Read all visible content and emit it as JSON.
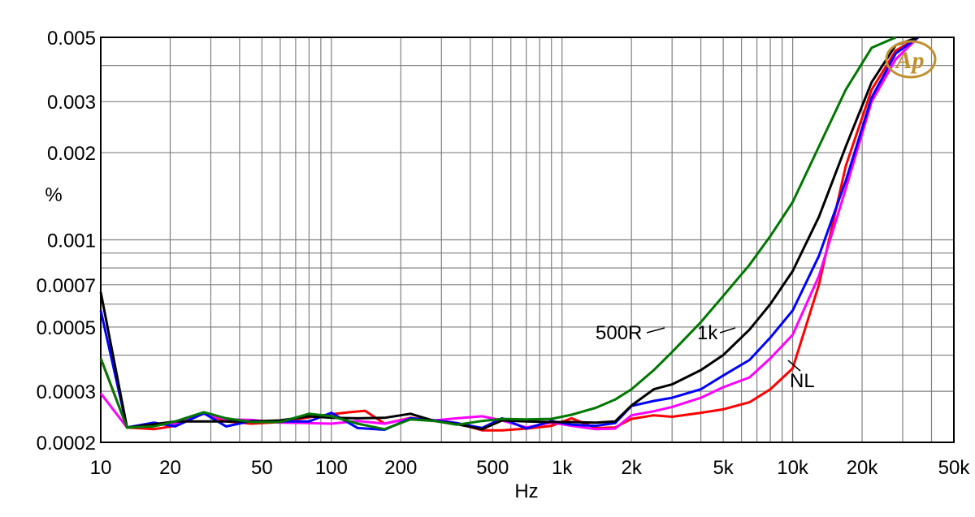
{
  "chart_data": {
    "type": "line",
    "xlabel": "Hz",
    "ylabel": "%",
    "xscale": "log",
    "yscale": "log",
    "xlim": [
      10,
      50000
    ],
    "ylim": [
      0.0002,
      0.005
    ],
    "grid": true,
    "x_ticks": [
      {
        "value": 10,
        "label": "10"
      },
      {
        "value": 20,
        "label": "20"
      },
      {
        "value": 50,
        "label": "50"
      },
      {
        "value": 100,
        "label": "100"
      },
      {
        "value": 200,
        "label": "200"
      },
      {
        "value": 500,
        "label": "500"
      },
      {
        "value": 1000,
        "label": "1k"
      },
      {
        "value": 2000,
        "label": "2k"
      },
      {
        "value": 5000,
        "label": "5k"
      },
      {
        "value": 10000,
        "label": "10k"
      },
      {
        "value": 20000,
        "label": "20k"
      },
      {
        "value": 50000,
        "label": "50k"
      }
    ],
    "y_ticks": [
      {
        "value": 0.0002,
        "label": "0.0002"
      },
      {
        "value": 0.0003,
        "label": "0.0003"
      },
      {
        "value": 0.0005,
        "label": "0.0005"
      },
      {
        "value": 0.0007,
        "label": "0.0007"
      },
      {
        "value": 0.001,
        "label": "0.001"
      },
      {
        "value": 0.002,
        "label": "0.002"
      },
      {
        "value": 0.003,
        "label": "0.003"
      },
      {
        "value": 0.005,
        "label": "0.005"
      }
    ],
    "series": [
      {
        "color": "#ff0000",
        "label": "NL",
        "x": [
          10,
          13,
          17,
          21,
          28,
          35,
          45,
          60,
          80,
          100,
          120,
          140,
          170,
          220,
          280,
          350,
          450,
          550,
          700,
          900,
          1100,
          1400,
          1700,
          2000,
          2500,
          3000,
          4000,
          5000,
          6500,
          8000,
          10000,
          13000,
          17000,
          22000,
          28000,
          35000
        ],
        "y": [
          0.00039,
          0.000225,
          0.000222,
          0.000228,
          0.000252,
          0.000236,
          0.000232,
          0.000235,
          0.000244,
          0.00025,
          0.000254,
          0.000257,
          0.000232,
          0.000243,
          0.000238,
          0.000233,
          0.00022,
          0.00022,
          0.000223,
          0.000228,
          0.000242,
          0.000224,
          0.000225,
          0.000241,
          0.000248,
          0.000245,
          0.000253,
          0.00026,
          0.000275,
          0.000305,
          0.00036,
          0.0007,
          0.0018,
          0.0033,
          0.0045,
          0.0055
        ]
      },
      {
        "color": "#ff00ff",
        "x": [
          10,
          13,
          17,
          21,
          28,
          35,
          45,
          60,
          80,
          100,
          130,
          170,
          220,
          280,
          350,
          450,
          550,
          700,
          900,
          1100,
          1400,
          1700,
          2000,
          2500,
          3000,
          4000,
          5000,
          6500,
          8000,
          10000,
          13000,
          17000,
          22000,
          28000,
          35000
        ],
        "y": [
          0.000295,
          0.000225,
          0.000229,
          0.000232,
          0.000251,
          0.00024,
          0.000239,
          0.000234,
          0.000233,
          0.000232,
          0.000237,
          0.000232,
          0.000242,
          0.000238,
          0.000242,
          0.000246,
          0.000238,
          0.000225,
          0.000234,
          0.000228,
          0.000222,
          0.000223,
          0.000248,
          0.000256,
          0.000265,
          0.000285,
          0.00031,
          0.000335,
          0.00039,
          0.00047,
          0.00075,
          0.0015,
          0.003,
          0.0042,
          0.0053
        ]
      },
      {
        "color": "#0000ff",
        "x": [
          10,
          13,
          17,
          21,
          28,
          35,
          45,
          60,
          80,
          100,
          130,
          170,
          220,
          280,
          350,
          450,
          550,
          700,
          900,
          1100,
          1400,
          1700,
          2000,
          2500,
          3000,
          4000,
          5000,
          6500,
          8000,
          10000,
          13000,
          17000,
          22000,
          28000,
          35000
        ],
        "y": [
          0.00057,
          0.000225,
          0.000234,
          0.000227,
          0.000252,
          0.000227,
          0.000237,
          0.000236,
          0.000236,
          0.000253,
          0.000224,
          0.000221,
          0.000242,
          0.000238,
          0.000233,
          0.000224,
          0.000242,
          0.000223,
          0.000237,
          0.00023,
          0.000228,
          0.000233,
          0.000267,
          0.000278,
          0.000285,
          0.000305,
          0.00034,
          0.000385,
          0.00046,
          0.00057,
          0.00088,
          0.0016,
          0.0031,
          0.0044,
          0.0053
        ]
      },
      {
        "color": "#000000",
        "label": "1k",
        "x": [
          10,
          13,
          17,
          21,
          28,
          35,
          45,
          60,
          80,
          100,
          130,
          170,
          220,
          280,
          350,
          450,
          550,
          700,
          900,
          1100,
          1400,
          1700,
          2000,
          2500,
          3000,
          4000,
          5000,
          6500,
          8000,
          10000,
          13000,
          17000,
          22000,
          28000,
          35000
        ],
        "y": [
          0.00066,
          0.000225,
          0.000231,
          0.000236,
          0.000236,
          0.000236,
          0.000236,
          0.000238,
          0.000246,
          0.000243,
          0.000242,
          0.000243,
          0.000251,
          0.000237,
          0.000231,
          0.000222,
          0.000238,
          0.000236,
          0.000235,
          0.000235,
          0.000234,
          0.000236,
          0.000268,
          0.000305,
          0.000317,
          0.000355,
          0.0004,
          0.00049,
          0.0006,
          0.00078,
          0.0012,
          0.0021,
          0.0035,
          0.0047,
          0.0055
        ]
      },
      {
        "color": "#007700",
        "label": "500R",
        "x": [
          10,
          13,
          17,
          21,
          28,
          35,
          45,
          60,
          80,
          100,
          130,
          170,
          220,
          280,
          350,
          450,
          550,
          700,
          900,
          1100,
          1400,
          1700,
          2000,
          2500,
          3000,
          4000,
          5000,
          6500,
          8000,
          10000,
          13000,
          17000,
          22000,
          28000
        ],
        "y": [
          0.00039,
          0.000225,
          0.000227,
          0.000236,
          0.000254,
          0.000242,
          0.000235,
          0.000235,
          0.000251,
          0.000246,
          0.000232,
          0.000222,
          0.00024,
          0.000237,
          0.00023,
          0.000237,
          0.000241,
          0.00024,
          0.000241,
          0.000249,
          0.000263,
          0.000281,
          0.000305,
          0.000355,
          0.00041,
          0.00052,
          0.00064,
          0.00082,
          0.00103,
          0.00135,
          0.0021,
          0.0033,
          0.0046,
          0.0055
        ]
      }
    ],
    "annotations": [
      {
        "text": "500R",
        "color": "#007700"
      },
      {
        "text": "1k",
        "color": "#000000"
      },
      {
        "text": "NL",
        "color": "#ff0000"
      }
    ],
    "logo": {
      "text": "Ap",
      "color": "#c09030"
    }
  }
}
